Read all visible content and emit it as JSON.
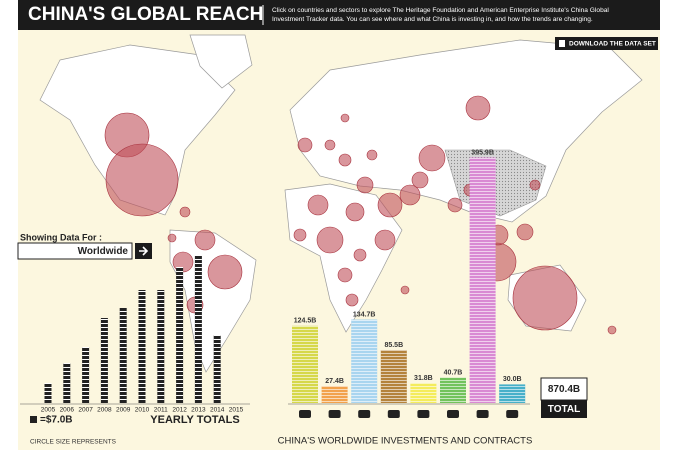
{
  "header": {
    "title": "CHINA'S GLOBAL REACH",
    "description": [
      "Click on countries and sectors to explore The Heritage Foundation and American Enterprise Institute's China Global",
      "Investment Tracker data. You can see where and what China is investing in, and how the trends are changing."
    ]
  },
  "download_button": "DOWNLOAD THE DATA SET",
  "filter": {
    "label": "Showing Data For :",
    "value": "Worldwide"
  },
  "map_note": "CIRCLE SIZE REPRESENTS",
  "total": {
    "label": "870.4B",
    "caption": "TOTAL"
  },
  "chart_data": [
    {
      "type": "bar",
      "title": "YEARLY TOTALS",
      "legend": "=$7.0B",
      "color": "#222222",
      "categories": [
        "2005",
        "2006",
        "2007",
        "2008",
        "2009",
        "2010",
        "2011",
        "2012",
        "2013",
        "2014",
        "2015"
      ],
      "values": [
        20,
        40,
        56,
        85,
        95,
        113,
        113,
        136,
        147,
        68,
        0
      ]
    },
    {
      "type": "bar",
      "title": "CHINA'S WORLDWIDE INVESTMENTS AND CONTRACTS",
      "categories": [
        null,
        null,
        null,
        null,
        null,
        null,
        null,
        null
      ],
      "values": [
        124.5,
        27.4,
        134.7,
        85.5,
        31.8,
        40.7,
        395.9,
        30.0
      ],
      "value_labels": [
        "124.5B",
        "27.4B",
        "134.7B",
        "85.5B",
        "31.8B",
        "40.7B",
        "395.9B",
        "30.0B"
      ],
      "colors": [
        "#d6d84a",
        "#f2a24c",
        "#a9d5ef",
        "#b4833c",
        "#f4ec5c",
        "#72c35c",
        "#d98ad3",
        "#47b0c9"
      ]
    }
  ]
}
